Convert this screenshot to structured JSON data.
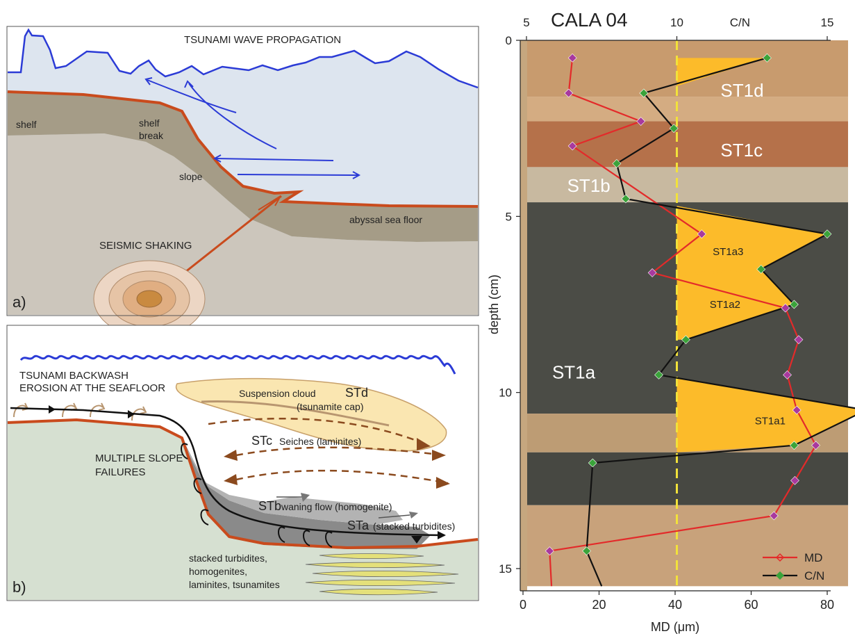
{
  "panel_a": {
    "title": "TSUNAMI WAVE PROPAGATION",
    "labels": {
      "shelf": "shelf",
      "shelf_break_1": "shelf",
      "shelf_break_2": "break",
      "slope": "slope",
      "abyssal": "abyssal sea floor",
      "seismic": "SEISMIC SHAKING"
    },
    "panel_letter": "a)",
    "colors": {
      "water": "#dde5ef",
      "crust": "#ccc6bc",
      "sediment": "#a59c87",
      "fault": "#c94b1d",
      "wave": "#2b3bd6",
      "sky": "#ffffff"
    }
  },
  "panel_b": {
    "backwash_1": "TSUNAMI BACKWASH",
    "backwash_2": "EROSION AT THE SEAFLOOR",
    "cloud_1": "Suspension cloud",
    "cloud_2": "(tsunamite cap)",
    "std": "STd",
    "stc": "STc",
    "stc_text": "Seiches (laminites)",
    "multi_1": "MULTIPLE SLOPE",
    "multi_2": "FAILURES",
    "stb": "STb",
    "stb_text": "waning flow (homogenite)",
    "sta": "STa",
    "sta_text": "(stacked turbidites)",
    "deposit_1": "stacked turbidites,",
    "deposit_2": "homogenites,",
    "deposit_3": "laminites, tsunamites",
    "panel_letter": "b)",
    "colors": {
      "floor": "#d6e0d1",
      "cloud": "#fae6b1",
      "flow": "#8a8a8a",
      "arrow": "#8b4a1e"
    }
  },
  "chart_data": {
    "type": "line",
    "title": "CALA 04",
    "top_axis_label": "C/N",
    "bottom_axis_label": "MD (μm)",
    "y_label": "depth (cm)",
    "y_range": [
      0,
      15.5
    ],
    "y_ticks": [
      0,
      5,
      10,
      15
    ],
    "top_axis_range": [
      5,
      16.5
    ],
    "top_ticks": [
      5,
      10,
      15
    ],
    "bottom_axis_range": [
      0,
      80
    ],
    "bottom_ticks": [
      0,
      20,
      40,
      60,
      80
    ],
    "reference_line": {
      "cn": 10,
      "color": "#f2e23a"
    },
    "series": [
      {
        "name": "MD",
        "color": "#e32a2a",
        "marker_color": "#a8399e",
        "axis": "bottom",
        "points": [
          {
            "x": 13,
            "depth": 0.5
          },
          {
            "x": 12,
            "depth": 1.5
          },
          {
            "x": 31,
            "depth": 2.3
          },
          {
            "x": 13,
            "depth": 3
          },
          {
            "x": 47,
            "depth": 5.5
          },
          {
            "x": 34,
            "depth": 6.6
          },
          {
            "x": 69,
            "depth": 7.6
          },
          {
            "x": 72.5,
            "depth": 8.5
          },
          {
            "x": 69.5,
            "depth": 9.5
          },
          {
            "x": 72,
            "depth": 10.5
          },
          {
            "x": 77,
            "depth": 11.5
          },
          {
            "x": 71.5,
            "depth": 12.5
          },
          {
            "x": 66,
            "depth": 13.5
          },
          {
            "x": 7,
            "depth": 14.5
          },
          {
            "x": 7.5,
            "depth": 15.5
          }
        ]
      },
      {
        "name": "C/N",
        "color": "#111111",
        "marker_color": "#3aa33a",
        "axis": "top",
        "points": [
          {
            "x": 13.0,
            "depth": 0.5
          },
          {
            "x": 8.9,
            "depth": 1.5
          },
          {
            "x": 9.9,
            "depth": 2.5
          },
          {
            "x": 8.0,
            "depth": 3.5
          },
          {
            "x": 8.3,
            "depth": 4.5
          },
          {
            "x": 15.0,
            "depth": 5.5
          },
          {
            "x": 12.8,
            "depth": 6.5
          },
          {
            "x": 13.9,
            "depth": 7.5
          },
          {
            "x": 10.3,
            "depth": 8.5
          },
          {
            "x": 9.4,
            "depth": 9.5
          },
          {
            "x": 16.3,
            "depth": 10.5
          },
          {
            "x": 13.9,
            "depth": 11.5
          },
          {
            "x": 7.2,
            "depth": 12.0
          },
          {
            "x": 7.0,
            "depth": 14.5
          },
          {
            "x": 7.5,
            "depth": 15.5
          }
        ]
      }
    ],
    "legend": [
      {
        "label": "MD",
        "color": "#e32a2a",
        "marker": "#a8399e",
        "shape": "open-diamond"
      },
      {
        "label": "C/N",
        "color": "#111111",
        "marker": "#3aa33a",
        "shape": "filled-diamond"
      }
    ],
    "legend_placement": "bottom-right",
    "units": [
      {
        "label": "ST1d",
        "depth": 1.6,
        "cn": 12.1
      },
      {
        "label": "ST1c",
        "depth": 3.3,
        "cn": 12.1
      },
      {
        "label": "ST1b",
        "depth": 4.3,
        "cn": 7.0
      },
      {
        "label": "ST1a3",
        "depth": 6.1,
        "cn": 11.7
      },
      {
        "label": "ST1a2",
        "depth": 7.6,
        "cn": 11.6
      },
      {
        "label": "ST1a1",
        "depth": 10.9,
        "cn": 13.1
      },
      {
        "label": "ST1a",
        "depth": 9.6,
        "cn": 6.5
      }
    ],
    "core_photo_layers": [
      {
        "from": 0,
        "to": 1.6,
        "color": "#c89b6e"
      },
      {
        "from": 1.6,
        "to": 2.3,
        "color": "#d4ac82"
      },
      {
        "from": 2.3,
        "to": 3.6,
        "color": "#b5714a"
      },
      {
        "from": 3.6,
        "to": 4.6,
        "color": "#c8b9a0"
      },
      {
        "from": 4.6,
        "to": 10.6,
        "color": "#4b4c46"
      },
      {
        "from": 10.6,
        "to": 11.7,
        "color": "#bd9c74"
      },
      {
        "from": 11.7,
        "to": 13.2,
        "color": "#474842"
      },
      {
        "from": 13.2,
        "to": 15.5,
        "color": "#c8a27b"
      }
    ]
  }
}
